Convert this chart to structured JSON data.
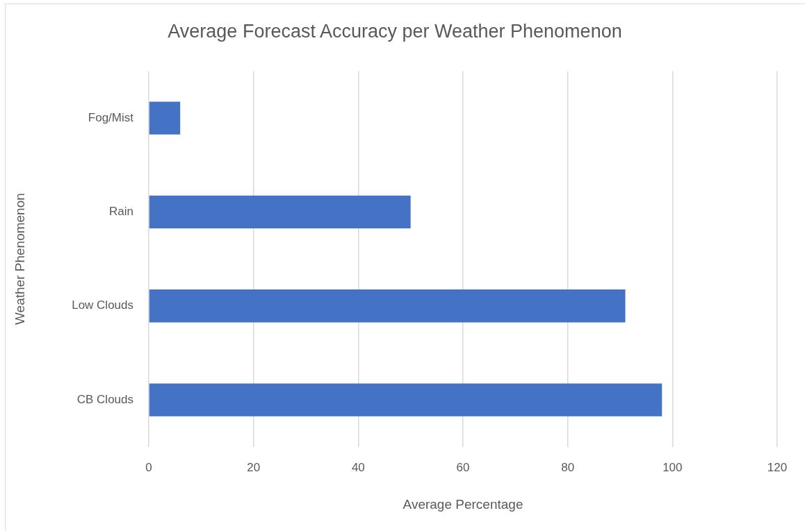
{
  "chart_data": {
    "type": "bar",
    "orientation": "horizontal",
    "title": "Average Forecast Accuracy per Weather Phenomenon",
    "xlabel": "Average Percentage",
    "ylabel": "Weather Phenomenon",
    "categories": [
      "Fog/Mist",
      "Rain",
      "Low Clouds",
      "CB Clouds"
    ],
    "values": [
      6,
      50,
      91,
      98
    ],
    "color": "#4472c4",
    "xlim": [
      0,
      120
    ],
    "xticks": [
      0,
      20,
      40,
      60,
      80,
      100,
      120
    ],
    "grid": "x"
  }
}
